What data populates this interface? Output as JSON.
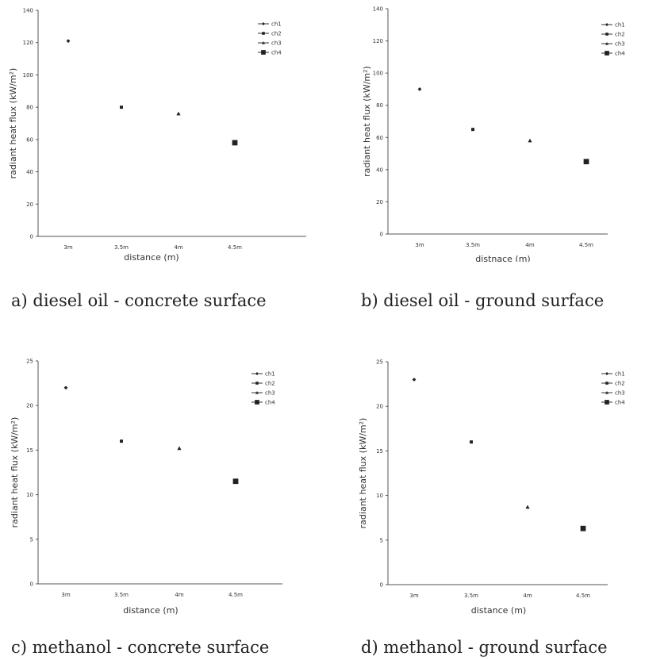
{
  "chart_data": [
    {
      "type": "scatter",
      "caption": "a) diesel oil - concrete surface",
      "xlabel": "distance (m)",
      "ylabel": "radiant heat flux (kW/m²)",
      "categories": [
        "3m",
        "3.5m",
        "4m",
        "4.5m"
      ],
      "yticks": [
        0,
        20,
        40,
        60,
        80,
        100,
        120,
        140
      ],
      "ylim": [
        0,
        140
      ],
      "legend_position": "top-right",
      "series": [
        {
          "name": "ch1",
          "marker": "diamond",
          "category": "3m",
          "value": 121
        },
        {
          "name": "ch2",
          "marker": "square-small",
          "category": "3.5m",
          "value": 80
        },
        {
          "name": "ch3",
          "marker": "triangle",
          "category": "4m",
          "value": 76
        },
        {
          "name": "ch4",
          "marker": "square",
          "category": "4.5m",
          "value": 58
        }
      ]
    },
    {
      "type": "scatter",
      "caption": "b) diesel oil - ground surface",
      "xlabel": "distnace (m)",
      "ylabel": "radiant heat flux (kW/m²)",
      "categories": [
        "3m",
        "3.5m",
        "4m",
        "4.5m"
      ],
      "yticks": [
        0,
        20,
        40,
        60,
        80,
        100,
        120,
        140
      ],
      "ylim": [
        0,
        140
      ],
      "legend_position": "top-right",
      "series": [
        {
          "name": "ch1",
          "marker": "diamond",
          "category": "3m",
          "value": 90
        },
        {
          "name": "ch2",
          "marker": "square-small",
          "category": "3.5m",
          "value": 65
        },
        {
          "name": "ch3",
          "marker": "triangle",
          "category": "4m",
          "value": 58
        },
        {
          "name": "ch4",
          "marker": "square",
          "category": "4.5m",
          "value": 45
        }
      ]
    },
    {
      "type": "scatter",
      "caption": "c) methanol - concrete surface",
      "xlabel": "distance (m)",
      "ylabel": "radiant heat flux (kW/m²)",
      "categories": [
        "3m",
        "3.5m",
        "4m",
        "4.5m"
      ],
      "yticks": [
        0,
        5,
        10,
        15,
        20,
        25
      ],
      "ylim": [
        0,
        25
      ],
      "legend_position": "top-right",
      "series": [
        {
          "name": "ch1",
          "marker": "diamond",
          "category": "3m",
          "value": 22
        },
        {
          "name": "ch2",
          "marker": "square-small",
          "category": "3.5m",
          "value": 16
        },
        {
          "name": "ch3",
          "marker": "triangle",
          "category": "4m",
          "value": 15.2
        },
        {
          "name": "ch4",
          "marker": "square",
          "category": "4.5m",
          "value": 11.5
        }
      ]
    },
    {
      "type": "scatter",
      "caption": "d) methanol - ground surface",
      "xlabel": "distance (m)",
      "ylabel": "radiant heat flux (kW/m²)",
      "categories": [
        "3m",
        "3.5m",
        "4m",
        "4.5m"
      ],
      "yticks": [
        0,
        5,
        10,
        15,
        20,
        25
      ],
      "ylim": [
        0,
        25
      ],
      "legend_position": "top-right",
      "series": [
        {
          "name": "ch1",
          "marker": "diamond",
          "category": "3m",
          "value": 23
        },
        {
          "name": "ch2",
          "marker": "square-small",
          "category": "3.5m",
          "value": 16
        },
        {
          "name": "ch3",
          "marker": "triangle",
          "category": "4m",
          "value": 8.7
        },
        {
          "name": "ch4",
          "marker": "square",
          "category": "4.5m",
          "value": 6.3
        }
      ]
    }
  ]
}
